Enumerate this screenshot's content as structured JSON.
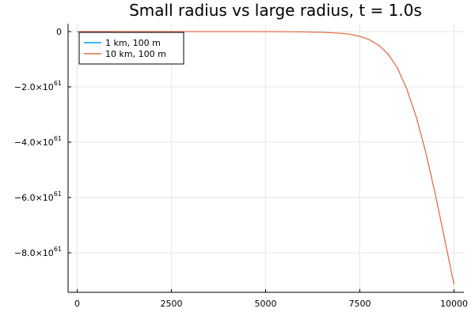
{
  "chart_data": {
    "type": "line",
    "title": "Small radius vs large radius, t = 1.0s",
    "xlabel": "",
    "ylabel": "",
    "xlim": [
      0,
      10000
    ],
    "ylim": [
      -9.2e+61,
      0
    ],
    "x_ticks": [
      0,
      2500,
      5000,
      7500,
      10000
    ],
    "x_tick_labels": [
      "0",
      "2500",
      "5000",
      "7500",
      "10000"
    ],
    "y_ticks": [
      0,
      -2e+61,
      -4e+61,
      -6e+61,
      -8e+61
    ],
    "y_tick_labels": [
      {
        "mantissa": "0",
        "exponent": ""
      },
      {
        "mantissa": "−2.0×10",
        "exponent": "61"
      },
      {
        "mantissa": "−4.0×10",
        "exponent": "61"
      },
      {
        "mantissa": "−6.0×10",
        "exponent": "61"
      },
      {
        "mantissa": "−8.0×10",
        "exponent": "61"
      }
    ],
    "grid": true,
    "legend_position": "top-left",
    "series": [
      {
        "name": "1 km, 100 m",
        "color": "#009AFA",
        "x": [
          0,
          1000
        ],
        "y": [
          0,
          0
        ]
      },
      {
        "name": "10 km, 100 m",
        "color": "#E26F46",
        "x": [
          0,
          1000,
          2000,
          3000,
          4000,
          5000,
          5500,
          6000,
          6500,
          7000,
          7250,
          7500,
          7750,
          8000,
          8250,
          8500,
          8750,
          9000,
          9250,
          9500,
          9750,
          10000
        ],
        "y": [
          0,
          0,
          0,
          0,
          0,
          -1e+58,
          -3e+58,
          -1e+59,
          -2.5e+59,
          -6e+59,
          -1e+60,
          -1.7e+60,
          -2.9e+60,
          -4.9e+60,
          -8.1e+60,
          -1.32e+61,
          -2.09e+61,
          -3.09e+61,
          -4.37e+61,
          -5.86e+61,
          -7.5e+61,
          -9.15e+61
        ]
      }
    ]
  }
}
